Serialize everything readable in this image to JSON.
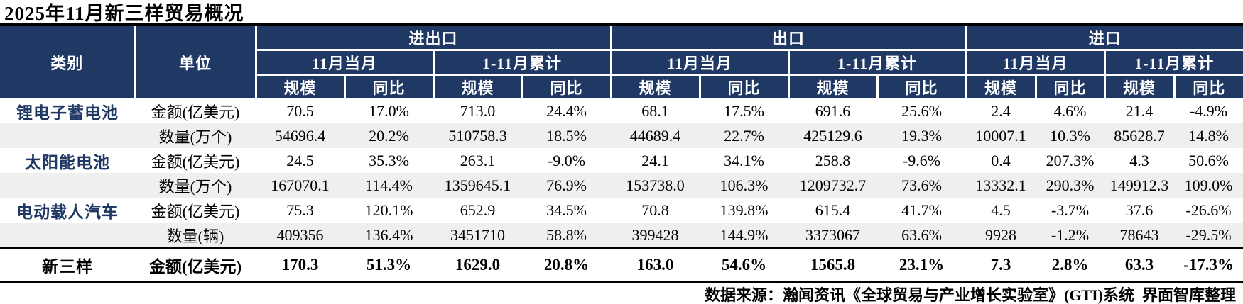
{
  "title": "2025年11月新三样贸易概况",
  "chart_data": {
    "type": "table",
    "title": "2025年11月新三样贸易概况",
    "header": {
      "category_label": "类别",
      "unit_label": "单位",
      "group_labels": [
        "进出口",
        "出口",
        "进口"
      ],
      "period_labels": [
        "11月当月",
        "1-11月累计"
      ],
      "metric_labels": [
        "规模",
        "同比"
      ]
    },
    "rows": [
      {
        "category": "锂电子蓄电池",
        "unit": "金额(亿美元)",
        "values": [
          "70.5",
          "17.0%",
          "713.0",
          "24.4%",
          "68.1",
          "17.5%",
          "691.6",
          "25.6%",
          "2.4",
          "4.6%",
          "21.4",
          "-4.9%"
        ]
      },
      {
        "category": "",
        "unit": "数量(万个)",
        "values": [
          "54696.4",
          "20.2%",
          "510758.3",
          "18.5%",
          "44689.4",
          "22.7%",
          "425129.6",
          "19.3%",
          "10007.1",
          "10.3%",
          "85628.7",
          "14.8%"
        ]
      },
      {
        "category": "太阳能电池",
        "unit": "金额(亿美元)",
        "values": [
          "24.5",
          "35.3%",
          "263.1",
          "-9.0%",
          "24.1",
          "34.1%",
          "258.8",
          "-9.6%",
          "0.4",
          "207.3%",
          "4.3",
          "50.6%"
        ]
      },
      {
        "category": "",
        "unit": "数量(万个)",
        "values": [
          "167070.1",
          "114.4%",
          "1359645.1",
          "76.9%",
          "153738.0",
          "106.3%",
          "1209732.7",
          "73.6%",
          "13332.1",
          "290.3%",
          "149912.3",
          "109.0%"
        ]
      },
      {
        "category": "电动载人汽车",
        "unit": "金额(亿美元)",
        "values": [
          "75.3",
          "120.1%",
          "652.9",
          "34.5%",
          "70.8",
          "139.8%",
          "615.4",
          "41.7%",
          "4.5",
          "-3.7%",
          "37.6",
          "-26.6%"
        ]
      },
      {
        "category": "",
        "unit": "数量(辆)",
        "values": [
          "409356",
          "136.4%",
          "3451710",
          "58.8%",
          "399428",
          "144.9%",
          "3373067",
          "63.6%",
          "9928",
          "-1.2%",
          "78643",
          "-29.5%"
        ]
      },
      {
        "category": "新三样",
        "unit": "金额(亿美元)",
        "is_total": true,
        "values": [
          "170.3",
          "51.3%",
          "1629.0",
          "20.8%",
          "163.0",
          "54.6%",
          "1565.8",
          "23.1%",
          "7.3",
          "2.8%",
          "63.3",
          "-17.3%"
        ]
      }
    ],
    "source": "数据来源：瀚闻资讯《全球贸易与产业增长实验室》(GTI)系统  界面智库整理"
  },
  "colors": {
    "header_bg": "#1F3864",
    "stripe_bg": "#EFEFEF",
    "category_text": "#1F3864",
    "border": "#000000"
  }
}
